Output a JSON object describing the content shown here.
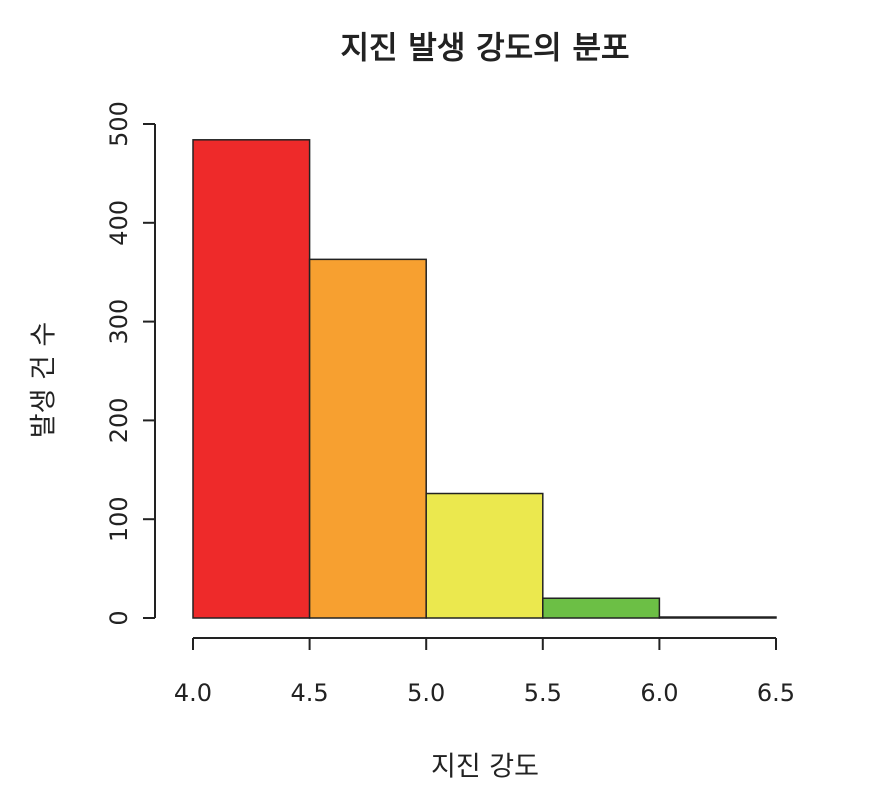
{
  "chart_data": {
    "type": "histogram",
    "title": "지진 발생 강도의 분포",
    "x_label": "지진 강도",
    "y_label": "발생 건 수",
    "bins": [
      4.0,
      4.5,
      5.0,
      5.5,
      6.0,
      6.5
    ],
    "values": [
      484,
      363,
      126,
      20,
      1
    ],
    "colors": [
      "#ee2a2a",
      "#f7a030",
      "#ebe84e",
      "#6cbf45",
      "#3b8fd6"
    ],
    "xlim": [
      4.0,
      6.5
    ],
    "xticks": [
      {
        "value": 4.0,
        "label": "4.0"
      },
      4.5,
      {
        "value": 5.0,
        "label": "5.0"
      },
      5.5,
      {
        "value": 6.0,
        "label": "6.0"
      },
      6.5
    ],
    "ylim": [
      0,
      500
    ],
    "yticks": [
      0,
      100,
      200,
      300,
      400,
      500
    ]
  }
}
